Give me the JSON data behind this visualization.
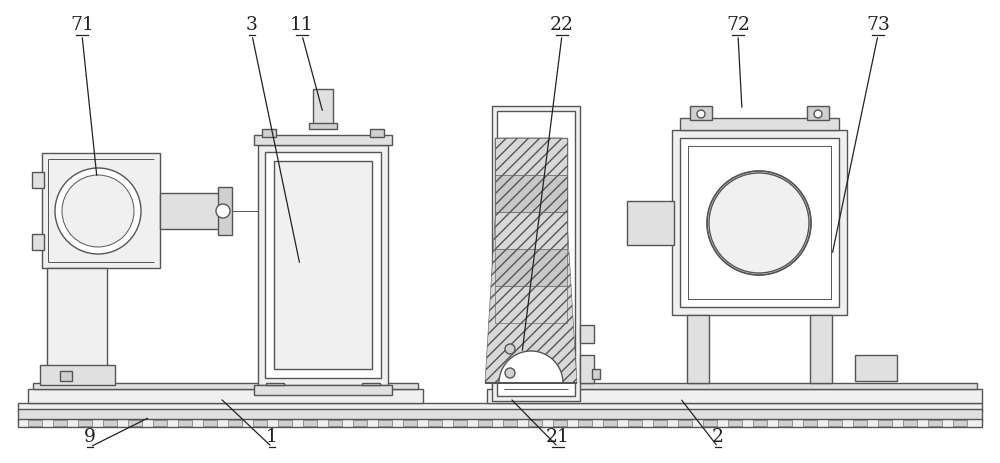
{
  "bg_color": "#ffffff",
  "lc": "#555555",
  "lc2": "#888888",
  "fc_light": "#f0f0f0",
  "fc_mid": "#e0e0e0",
  "fc_dark": "#d0d0d0",
  "fc_white": "#ffffff",
  "hatch_fc": "#d8d8d8",
  "label_color": "#222222",
  "figsize": [
    10.0,
    4.63
  ],
  "dpi": 100
}
